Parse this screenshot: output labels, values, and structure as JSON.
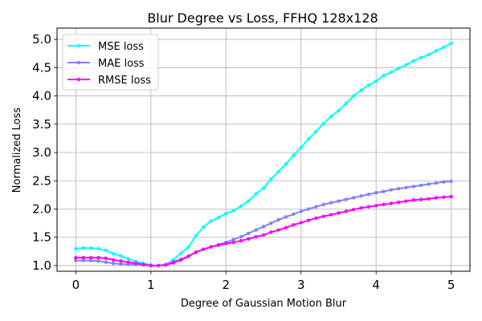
{
  "chart_data": {
    "type": "line",
    "title": "Blur Degree vs Loss, FFHQ 128x128",
    "xlabel": "Degree of Gaussian Motion Blur",
    "ylabel": "Normalized Loss",
    "xlim": [
      -0.25,
      5.25
    ],
    "ylim": [
      0.9,
      5.2
    ],
    "xticks": [
      "0",
      "1",
      "2",
      "3",
      "4",
      "5"
    ],
    "yticks": [
      "1.0",
      "1.5",
      "2.0",
      "2.5",
      "3.0",
      "3.5",
      "4.0",
      "4.5",
      "5.0"
    ],
    "grid": true,
    "legend_position": "top-left",
    "x": [
      0.0,
      0.1,
      0.2,
      0.3,
      0.4,
      0.5,
      0.6,
      0.7,
      0.8,
      0.9,
      1.0,
      1.1,
      1.2,
      1.3,
      1.4,
      1.5,
      1.6,
      1.7,
      1.8,
      1.9,
      2.0,
      2.1,
      2.2,
      2.3,
      2.4,
      2.5,
      2.6,
      2.7,
      2.8,
      2.9,
      3.0,
      3.1,
      3.2,
      3.3,
      3.4,
      3.5,
      3.6,
      3.7,
      3.8,
      3.9,
      4.0,
      4.1,
      4.2,
      4.3,
      4.4,
      4.5,
      4.6,
      4.7,
      4.8,
      4.9,
      5.0
    ],
    "series": [
      {
        "name": "MSE loss",
        "color": "#00ffff",
        "values": [
          1.3,
          1.31,
          1.31,
          1.3,
          1.27,
          1.21,
          1.17,
          1.12,
          1.07,
          1.04,
          1.01,
          1.0,
          1.02,
          1.1,
          1.22,
          1.33,
          1.53,
          1.68,
          1.79,
          1.85,
          1.92,
          1.97,
          2.05,
          2.14,
          2.27,
          2.37,
          2.53,
          2.66,
          2.8,
          2.95,
          3.09,
          3.24,
          3.37,
          3.51,
          3.64,
          3.74,
          3.87,
          4.0,
          4.1,
          4.19,
          4.26,
          4.36,
          4.42,
          4.49,
          4.55,
          4.62,
          4.68,
          4.73,
          4.8,
          4.86,
          4.93
        ]
      },
      {
        "name": "MAE loss",
        "color": "#8080ff",
        "values": [
          1.09,
          1.09,
          1.09,
          1.08,
          1.06,
          1.04,
          1.03,
          1.02,
          1.02,
          1.01,
          1.0,
          1.0,
          1.02,
          1.07,
          1.11,
          1.17,
          1.23,
          1.29,
          1.33,
          1.37,
          1.41,
          1.46,
          1.51,
          1.57,
          1.63,
          1.69,
          1.75,
          1.81,
          1.86,
          1.91,
          1.96,
          2.0,
          2.04,
          2.08,
          2.11,
          2.14,
          2.17,
          2.2,
          2.23,
          2.26,
          2.29,
          2.31,
          2.34,
          2.36,
          2.38,
          2.4,
          2.42,
          2.44,
          2.46,
          2.48,
          2.49
        ]
      },
      {
        "name": "RMSE loss",
        "color": "#ff00ff",
        "values": [
          1.14,
          1.14,
          1.14,
          1.14,
          1.13,
          1.1,
          1.08,
          1.06,
          1.04,
          1.02,
          1.0,
          1.0,
          1.01,
          1.05,
          1.1,
          1.16,
          1.24,
          1.29,
          1.33,
          1.36,
          1.39,
          1.41,
          1.44,
          1.47,
          1.51,
          1.54,
          1.59,
          1.63,
          1.67,
          1.72,
          1.76,
          1.8,
          1.84,
          1.87,
          1.9,
          1.93,
          1.96,
          1.99,
          2.02,
          2.04,
          2.06,
          2.08,
          2.1,
          2.12,
          2.14,
          2.16,
          2.17,
          2.18,
          2.2,
          2.21,
          2.22
        ]
      }
    ]
  }
}
